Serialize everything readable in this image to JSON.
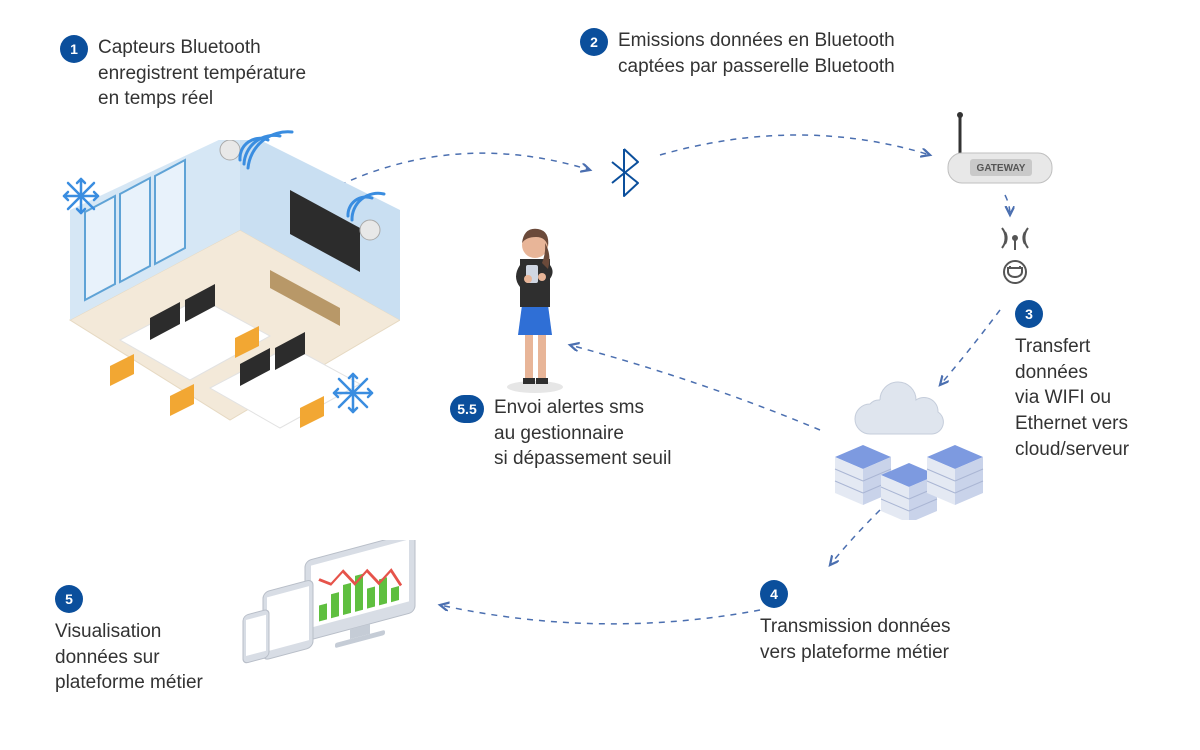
{
  "styling": {
    "badge_bg": "#0b4f9c",
    "badge_text": "#ffffff",
    "text_color": "#333333",
    "arrow_color": "#4b6fb0",
    "dash_pattern": "6,6",
    "arrow_stroke_width": 1.5,
    "font_size_label": 19,
    "bluetooth_icon_color": "#0b4f9c",
    "snowflake_color": "#3a8de0",
    "wifi_arc_color": "#3a8de0",
    "wireless_icon_color": "#555555",
    "gateway_body": "#e8e8e8",
    "gateway_label_bg": "#c9c9c9",
    "gateway_label_text": "GATEWAY",
    "cloud_color": "#dfe5ee",
    "server_blue": "#5b7fd1",
    "server_face": "#e4e9f3",
    "monitor_body": "#d8dde5",
    "monitor_screen": "#ffffff",
    "chart_green": "#5fbf3f",
    "chart_red": "#e6534a",
    "office_floor": "#f3e9d9",
    "office_wall_back": "#c9dff2",
    "office_wall_side": "#d6e7f5",
    "office_desk": "#ffffff",
    "office_chair": "#f2a733",
    "office_screen": "#2c2c2c",
    "office_window_frame": "#5fa3d6",
    "person_skin": "#e8b598",
    "person_hair": "#6b4a3a",
    "person_jacket": "#2f2f2f",
    "person_skirt": "#2f6fd6",
    "person_legs": "#e8b598",
    "person_shoes": "#2f2f2f"
  },
  "steps": {
    "s1": {
      "num": "1",
      "text": "Capteurs Bluetooth\nenregistrent température\nen temps réel"
    },
    "s2": {
      "num": "2",
      "text": "Emissions données en Bluetooth\ncaptées par passerelle Bluetooth"
    },
    "s3": {
      "num": "3",
      "text": "Transfert\ndonnées\nvia WIFI ou\nEthernet vers\ncloud/serveur"
    },
    "s4": {
      "num": "4",
      "text": "Transmission données\nvers plateforme métier"
    },
    "s5": {
      "num": "5",
      "text": "Visualisation\ndonnées sur\nplateforme métier"
    },
    "s55": {
      "num": "5.5",
      "text": "Envoi alertes sms\nau gestionnaire\nsi dépassement seuil"
    }
  }
}
